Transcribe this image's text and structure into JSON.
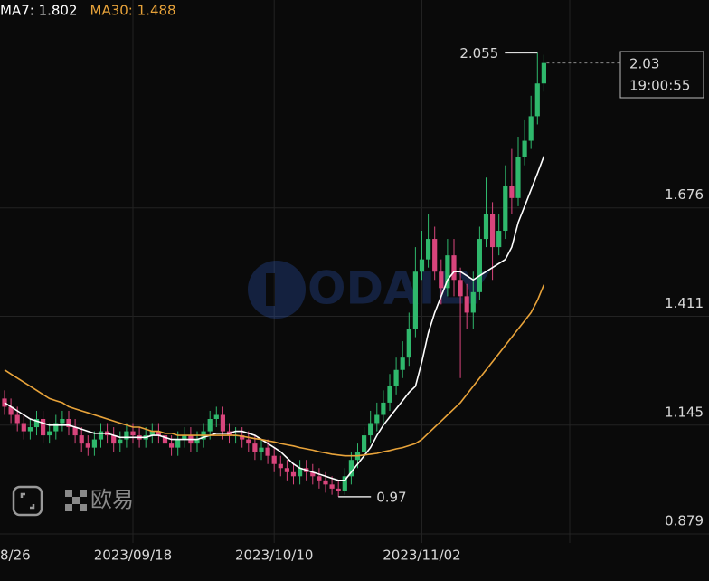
{
  "chart_data": {
    "type": "candlestick",
    "xlim": [
      -0.704,
      88.03
    ],
    "ylim": [
      0.857,
      2.184
    ],
    "xticks": [
      {
        "value": -3,
        "label": "8/26"
      },
      {
        "value": 20,
        "label": "2023/09/18"
      },
      {
        "value": 42,
        "label": "2023/10/10"
      },
      {
        "value": 65,
        "label": "2023/11/02"
      }
    ],
    "yticks": [
      1.676,
      1.411,
      1.145,
      0.879
    ],
    "grid": true,
    "up_color": "#2fb86c",
    "down_color": "#d8457c",
    "open": [
      1.21,
      1.19,
      1.17,
      1.15,
      1.13,
      1.14,
      1.16,
      1.12,
      1.13,
      1.15,
      1.16,
      1.14,
      1.12,
      1.1,
      1.09,
      1.11,
      1.13,
      1.12,
      1.1,
      1.11,
      1.13,
      1.12,
      1.11,
      1.12,
      1.13,
      1.12,
      1.1,
      1.09,
      1.11,
      1.12,
      1.1,
      1.11,
      1.13,
      1.16,
      1.17,
      1.13,
      1.12,
      1.12,
      1.11,
      1.1,
      1.08,
      1.09,
      1.07,
      1.05,
      1.04,
      1.03,
      1.02,
      1.04,
      1.03,
      1.02,
      1.01,
      1.0,
      0.99,
      0.985,
      1.02,
      1.06,
      1.08,
      1.12,
      1.15,
      1.17,
      1.2,
      1.24,
      1.28,
      1.31,
      1.38,
      1.52,
      1.55,
      1.6,
      1.52,
      1.48,
      1.56,
      1.5,
      1.46,
      1.42,
      1.47,
      1.6,
      1.66,
      1.58,
      1.62,
      1.73,
      1.7,
      1.8,
      1.84,
      1.9,
      1.98
    ],
    "high": [
      1.23,
      1.21,
      1.19,
      1.17,
      1.16,
      1.18,
      1.18,
      1.15,
      1.17,
      1.18,
      1.18,
      1.16,
      1.14,
      1.12,
      1.13,
      1.15,
      1.15,
      1.14,
      1.13,
      1.15,
      1.15,
      1.14,
      1.14,
      1.15,
      1.15,
      1.14,
      1.12,
      1.13,
      1.14,
      1.14,
      1.13,
      1.15,
      1.18,
      1.19,
      1.19,
      1.15,
      1.14,
      1.14,
      1.13,
      1.12,
      1.11,
      1.11,
      1.09,
      1.07,
      1.06,
      1.05,
      1.06,
      1.06,
      1.05,
      1.04,
      1.03,
      1.02,
      1.01,
      1.04,
      1.08,
      1.1,
      1.14,
      1.18,
      1.2,
      1.23,
      1.27,
      1.31,
      1.35,
      1.42,
      1.58,
      1.62,
      1.66,
      1.63,
      1.55,
      1.6,
      1.6,
      1.53,
      1.49,
      1.52,
      1.63,
      1.75,
      1.69,
      1.66,
      1.78,
      1.82,
      1.85,
      1.89,
      1.95,
      2.055,
      2.05
    ],
    "low": [
      1.17,
      1.15,
      1.13,
      1.11,
      1.11,
      1.12,
      1.1,
      1.1,
      1.11,
      1.13,
      1.12,
      1.1,
      1.08,
      1.07,
      1.07,
      1.09,
      1.1,
      1.08,
      1.08,
      1.09,
      1.1,
      1.09,
      1.09,
      1.1,
      1.1,
      1.08,
      1.07,
      1.07,
      1.09,
      1.08,
      1.08,
      1.09,
      1.11,
      1.14,
      1.11,
      1.1,
      1.1,
      1.09,
      1.08,
      1.06,
      1.06,
      1.05,
      1.03,
      1.02,
      1.01,
      1.0,
      1.0,
      1.01,
      1.0,
      0.99,
      0.98,
      0.975,
      0.97,
      0.975,
      1.0,
      1.04,
      1.06,
      1.1,
      1.13,
      1.15,
      1.18,
      1.22,
      1.26,
      1.29,
      1.36,
      1.5,
      1.53,
      1.5,
      1.44,
      1.46,
      1.46,
      1.26,
      1.38,
      1.38,
      1.45,
      1.58,
      1.5,
      1.56,
      1.6,
      1.66,
      1.68,
      1.78,
      1.82,
      1.88,
      1.96
    ],
    "close": [
      1.19,
      1.17,
      1.15,
      1.13,
      1.14,
      1.16,
      1.12,
      1.13,
      1.15,
      1.16,
      1.14,
      1.12,
      1.1,
      1.09,
      1.11,
      1.13,
      1.12,
      1.1,
      1.11,
      1.13,
      1.12,
      1.11,
      1.12,
      1.13,
      1.12,
      1.1,
      1.09,
      1.11,
      1.12,
      1.1,
      1.11,
      1.13,
      1.16,
      1.17,
      1.13,
      1.12,
      1.12,
      1.11,
      1.1,
      1.08,
      1.09,
      1.07,
      1.05,
      1.04,
      1.03,
      1.02,
      1.04,
      1.03,
      1.02,
      1.01,
      1.0,
      0.99,
      0.985,
      1.02,
      1.06,
      1.08,
      1.12,
      1.15,
      1.17,
      1.2,
      1.24,
      1.28,
      1.31,
      1.38,
      1.52,
      1.55,
      1.6,
      1.52,
      1.48,
      1.56,
      1.5,
      1.46,
      1.42,
      1.47,
      1.6,
      1.66,
      1.58,
      1.62,
      1.73,
      1.7,
      1.8,
      1.84,
      1.9,
      1.98,
      2.03
    ],
    "series": [
      {
        "name": "MA7: 1.802",
        "color": "#ffffff",
        "values": [
          1.2,
          1.19,
          1.18,
          1.17,
          1.16,
          1.155,
          1.15,
          1.145,
          1.145,
          1.145,
          1.145,
          1.14,
          1.135,
          1.13,
          1.125,
          1.125,
          1.125,
          1.12,
          1.115,
          1.115,
          1.115,
          1.115,
          1.115,
          1.12,
          1.12,
          1.115,
          1.11,
          1.11,
          1.11,
          1.11,
          1.11,
          1.115,
          1.12,
          1.125,
          1.125,
          1.125,
          1.13,
          1.13,
          1.125,
          1.12,
          1.11,
          1.1,
          1.09,
          1.08,
          1.065,
          1.05,
          1.04,
          1.035,
          1.03,
          1.025,
          1.02,
          1.015,
          1.01,
          1.01,
          1.03,
          1.05,
          1.07,
          1.09,
          1.12,
          1.145,
          1.165,
          1.185,
          1.205,
          1.225,
          1.24,
          1.3,
          1.37,
          1.42,
          1.46,
          1.5,
          1.52,
          1.52,
          1.51,
          1.5,
          1.51,
          1.52,
          1.53,
          1.54,
          1.55,
          1.58,
          1.64,
          1.68,
          1.72,
          1.76,
          1.802
        ]
      },
      {
        "name": "MA30: 1.488",
        "color": "#e8a33a",
        "values": [
          1.28,
          1.27,
          1.26,
          1.25,
          1.24,
          1.23,
          1.22,
          1.21,
          1.205,
          1.2,
          1.19,
          1.185,
          1.18,
          1.175,
          1.17,
          1.165,
          1.16,
          1.155,
          1.15,
          1.145,
          1.14,
          1.14,
          1.135,
          1.13,
          1.13,
          1.125,
          1.125,
          1.12,
          1.12,
          1.12,
          1.12,
          1.12,
          1.12,
          1.12,
          1.12,
          1.12,
          1.12,
          1.118,
          1.115,
          1.112,
          1.11,
          1.107,
          1.104,
          1.1,
          1.097,
          1.094,
          1.09,
          1.087,
          1.084,
          1.08,
          1.077,
          1.074,
          1.072,
          1.07,
          1.07,
          1.07,
          1.072,
          1.074,
          1.076,
          1.08,
          1.083,
          1.087,
          1.09,
          1.095,
          1.1,
          1.11,
          1.125,
          1.14,
          1.155,
          1.17,
          1.185,
          1.2,
          1.22,
          1.24,
          1.26,
          1.28,
          1.3,
          1.32,
          1.34,
          1.36,
          1.38,
          1.4,
          1.42,
          1.45,
          1.488
        ]
      }
    ],
    "countdown": "19:00:55",
    "watermark": "ODAILY",
    "brand": "欧易"
  }
}
